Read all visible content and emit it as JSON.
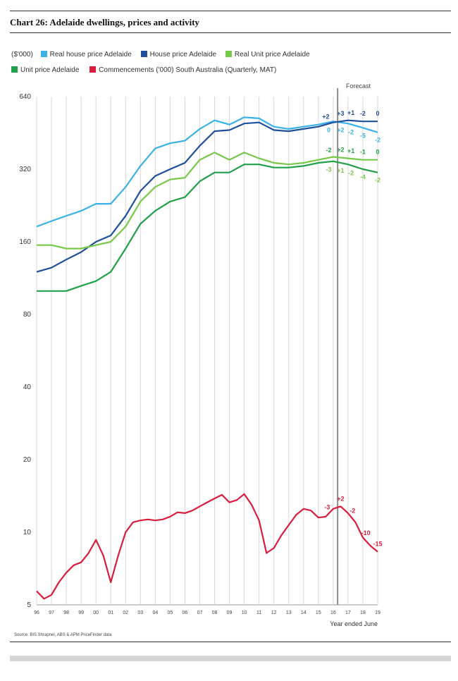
{
  "chart_title": "Chart 26: Adelaide dwellings, prices and activity",
  "source": "Source: BIS Shrapnel, ABS & APM PriceFinder data",
  "legend": [
    {
      "label": "($'000)",
      "color": ""
    },
    {
      "label": "Real house price Adelaide",
      "color": "#3bb2e6"
    },
    {
      "label": "House price Adelaide",
      "color": "#1f4f9b"
    },
    {
      "label": "Real Unit price Adelaide",
      "color": "#78c84a"
    },
    {
      "label": "Unit price Adelaide",
      "color": "#21a04a"
    },
    {
      "label": "Commencements ('000) South Australia (Quarterly, MAT)",
      "color": "#d81e3c"
    }
  ],
  "chart_data": {
    "type": "line",
    "title": "Chart 26: Adelaide dwellings, prices and activity",
    "xlabel": "Year ended June",
    "ylabel": "($'000)",
    "y_scale": "log2",
    "ylim": [
      5,
      640
    ],
    "y_ticks": [
      5,
      10,
      20,
      40,
      80,
      160,
      320,
      640
    ],
    "x_ticks": [
      "96",
      "97",
      "98",
      "99",
      "00",
      "01",
      "02",
      "03",
      "04",
      "05",
      "06",
      "07",
      "08",
      "09",
      "10",
      "11",
      "12",
      "13",
      "14",
      "15",
      "16",
      "17",
      "18",
      "19"
    ],
    "xlim": [
      1996,
      2019
    ],
    "grid": "vertical",
    "forecast_label": "Forecast",
    "forecast_start": 2016.3,
    "series": [
      {
        "name": "Real house price Adelaide",
        "color": "#3bb2e6",
        "x": [
          1996,
          1997,
          1998,
          1999,
          2000,
          2001,
          2002,
          2003,
          2004,
          2005,
          2006,
          2007,
          2008,
          2009,
          2010,
          2011,
          2012,
          2013,
          2014,
          2015,
          2016,
          2017,
          2018,
          2019
        ],
        "y": [
          185,
          195,
          205,
          215,
          230,
          230,
          270,
          330,
          390,
          410,
          420,
          470,
          510,
          490,
          525,
          520,
          480,
          470,
          480,
          490,
          505,
          495,
          475,
          455
        ]
      },
      {
        "name": "House price Adelaide",
        "color": "#1f4f9b",
        "x": [
          1996,
          1997,
          1998,
          1999,
          2000,
          2001,
          2002,
          2003,
          2004,
          2005,
          2006,
          2007,
          2008,
          2009,
          2010,
          2011,
          2012,
          2013,
          2014,
          2015,
          2016,
          2017,
          2018,
          2019
        ],
        "y": [
          120,
          125,
          135,
          145,
          160,
          170,
          205,
          260,
          300,
          320,
          340,
          400,
          460,
          465,
          495,
          500,
          465,
          460,
          470,
          480,
          500,
          510,
          505,
          505
        ]
      },
      {
        "name": "Real Unit price Adelaide",
        "color": "#78c84a",
        "x": [
          1996,
          1997,
          1998,
          1999,
          2000,
          2001,
          2002,
          2003,
          2004,
          2005,
          2006,
          2007,
          2008,
          2009,
          2010,
          2011,
          2012,
          2013,
          2014,
          2015,
          2016,
          2017,
          2018,
          2019
        ],
        "y": [
          155,
          155,
          150,
          150,
          155,
          160,
          185,
          235,
          270,
          290,
          295,
          350,
          375,
          350,
          375,
          355,
          340,
          335,
          340,
          350,
          360,
          355,
          350,
          350
        ]
      },
      {
        "name": "Unit price Adelaide",
        "color": "#21a04a",
        "x": [
          1996,
          1997,
          1998,
          1999,
          2000,
          2001,
          2002,
          2003,
          2004,
          2005,
          2006,
          2007,
          2008,
          2009,
          2010,
          2011,
          2012,
          2013,
          2014,
          2015,
          2016,
          2017,
          2018,
          2019
        ],
        "y": [
          100,
          100,
          100,
          105,
          110,
          120,
          150,
          190,
          215,
          235,
          245,
          285,
          310,
          310,
          335,
          335,
          325,
          325,
          330,
          340,
          345,
          335,
          320,
          310
        ]
      },
      {
        "name": "Commencements ('000) South Australia (Quarterly, MAT)",
        "color": "#d81e3c",
        "x": [
          1996,
          1996.5,
          1997,
          1997.5,
          1998,
          1998.5,
          1999,
          1999.5,
          2000,
          2000.5,
          2001,
          2001.5,
          2002,
          2002.5,
          2003,
          2003.5,
          2004,
          2004.5,
          2005,
          2005.5,
          2006,
          2006.5,
          2007,
          2007.5,
          2008,
          2008.5,
          2009,
          2009.5,
          2010,
          2010.5,
          2011,
          2011.5,
          2012,
          2012.5,
          2013,
          2013.5,
          2014,
          2014.5,
          2015,
          2015.5,
          2016,
          2016.5,
          2017,
          2017.5,
          2018,
          2018.5,
          2019
        ],
        "y": [
          5.7,
          5.3,
          5.5,
          6.2,
          6.8,
          7.3,
          7.5,
          8.2,
          9.3,
          8.0,
          6.2,
          8.0,
          10.0,
          11.0,
          11.2,
          11.3,
          11.2,
          11.3,
          11.6,
          12.1,
          12.0,
          12.3,
          12.8,
          13.3,
          13.8,
          14.3,
          13.3,
          13.6,
          14.4,
          13.0,
          11.2,
          8.2,
          8.6,
          9.7,
          10.7,
          11.8,
          12.5,
          12.3,
          11.5,
          11.6,
          12.5,
          12.8,
          12.0,
          11.0,
          9.5,
          8.8,
          8.3
        ]
      }
    ],
    "annotations": [
      {
        "text": "+2",
        "series": "House price Adelaide",
        "x": 2015.5,
        "color": "#1f4f9b"
      },
      {
        "text": "+3",
        "series": "House price Adelaide",
        "x": 2016.5,
        "color": "#1f4f9b"
      },
      {
        "text": "+1",
        "series": "House price Adelaide",
        "x": 2017.2,
        "color": "#1f4f9b"
      },
      {
        "text": "-2",
        "series": "House price Adelaide",
        "x": 2018,
        "color": "#1f4f9b"
      },
      {
        "text": "0",
        "series": "House price Adelaide",
        "x": 2019,
        "color": "#1f4f9b"
      },
      {
        "text": "0",
        "series": "Real house price Adelaide",
        "x": 2015.7,
        "color": "#3bb2e6"
      },
      {
        "text": "+2",
        "series": "Real house price Adelaide",
        "x": 2016.5,
        "color": "#3bb2e6"
      },
      {
        "text": "-2",
        "series": "Real house price Adelaide",
        "x": 2017.2,
        "color": "#3bb2e6"
      },
      {
        "text": "-5",
        "series": "Real house price Adelaide",
        "x": 2018,
        "color": "#3bb2e6"
      },
      {
        "text": "-2",
        "series": "Real house price Adelaide",
        "x": 2019,
        "color": "#3bb2e6"
      },
      {
        "text": "-2",
        "series": "Real Unit price Adelaide",
        "x": 2015.7,
        "color": "#21a04a"
      },
      {
        "text": "+2",
        "series": "Real Unit price Adelaide",
        "x": 2016.5,
        "color": "#21a04a"
      },
      {
        "text": "+1",
        "series": "Real Unit price Adelaide",
        "x": 2017.2,
        "color": "#21a04a"
      },
      {
        "text": "-1",
        "series": "Real Unit price Adelaide",
        "x": 2018,
        "color": "#21a04a"
      },
      {
        "text": "0",
        "series": "Real Unit price Adelaide",
        "x": 2019,
        "color": "#21a04a"
      },
      {
        "text": "-3",
        "series": "Unit price Adelaide",
        "x": 2015.7,
        "color": "#78c84a"
      },
      {
        "text": "+1",
        "series": "Unit price Adelaide",
        "x": 2016.5,
        "color": "#78c84a"
      },
      {
        "text": "-2",
        "series": "Unit price Adelaide",
        "x": 2017.2,
        "color": "#78c84a"
      },
      {
        "text": "-4",
        "series": "Unit price Adelaide",
        "x": 2018,
        "color": "#78c84a"
      },
      {
        "text": "-2",
        "series": "Unit price Adelaide",
        "x": 2019,
        "color": "#78c84a"
      },
      {
        "text": "-3",
        "series": "Commencements ('000) South Australia (Quarterly, MAT)",
        "x": 2015.6,
        "color": "#d81e3c"
      },
      {
        "text": "+2",
        "series": "Commencements ('000) South Australia (Quarterly, MAT)",
        "x": 2016.5,
        "color": "#d81e3c"
      },
      {
        "text": "-2",
        "series": "Commencements ('000) South Australia (Quarterly, MAT)",
        "x": 2017.3,
        "color": "#d81e3c"
      },
      {
        "text": "-10",
        "series": "Commencements ('000) South Australia (Quarterly, MAT)",
        "x": 2018.2,
        "color": "#d81e3c"
      },
      {
        "text": "-15",
        "series": "Commencements ('000) South Australia (Quarterly, MAT)",
        "x": 2019,
        "color": "#d81e3c"
      }
    ]
  }
}
